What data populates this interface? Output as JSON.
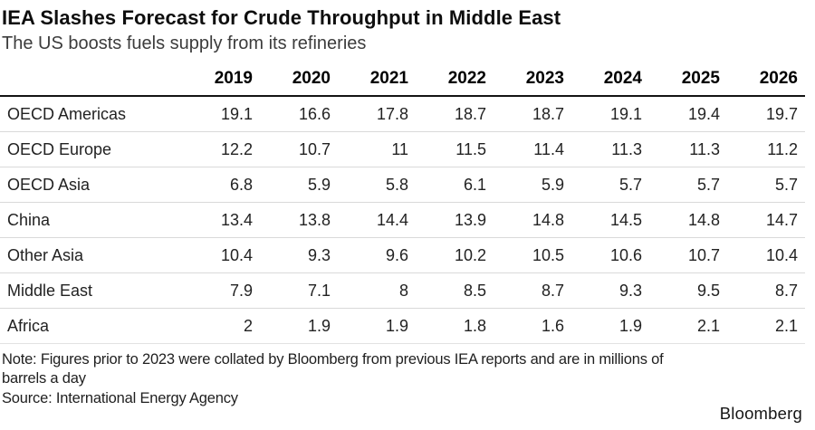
{
  "header": {
    "title": "IEA Slashes Forecast for Crude Throughput in Middle East",
    "subtitle": "The US boosts fuels supply from its refineries"
  },
  "chart_data": {
    "type": "table",
    "title": "IEA Slashes Forecast for Crude Throughput in Middle East",
    "subtitle": "The US boosts fuels supply from its refineries",
    "unit": "millions of barrels a day",
    "categories": [
      "2019",
      "2020",
      "2021",
      "2022",
      "2023",
      "2024",
      "2025",
      "2026"
    ],
    "series": [
      {
        "name": "OECD Americas",
        "values": [
          19.1,
          16.6,
          17.8,
          18.7,
          18.7,
          19.1,
          19.4,
          19.7
        ]
      },
      {
        "name": "OECD Europe",
        "values": [
          12.2,
          10.7,
          11,
          11.5,
          11.4,
          11.3,
          11.3,
          11.2
        ]
      },
      {
        "name": "OECD Asia",
        "values": [
          6.8,
          5.9,
          5.8,
          6.1,
          5.9,
          5.7,
          5.7,
          5.7
        ]
      },
      {
        "name": "China",
        "values": [
          13.4,
          13.8,
          14.4,
          13.9,
          14.8,
          14.5,
          14.8,
          14.7
        ]
      },
      {
        "name": "Other Asia",
        "values": [
          10.4,
          9.3,
          9.6,
          10.2,
          10.5,
          10.6,
          10.7,
          10.4
        ]
      },
      {
        "name": "Middle East",
        "values": [
          7.9,
          7.1,
          8,
          8.5,
          8.7,
          9.3,
          9.5,
          8.7
        ]
      },
      {
        "name": "Africa",
        "values": [
          2,
          1.9,
          1.9,
          1.8,
          1.6,
          1.9,
          2.1,
          2.1
        ]
      }
    ]
  },
  "footer": {
    "note_line1": "Note: Figures prior to 2023 were collated by Bloomberg from previous IEA reports and are in millions of",
    "note_line2": "barrels a day",
    "source": "Source: International Energy Agency",
    "brand": "Bloomberg"
  },
  "colors": {
    "header_rule": "#141414",
    "row_rule": "#d9d9d9",
    "title_text": "#0e0e0e",
    "subtitle_text": "#3c3c3c",
    "body_text": "#222222"
  }
}
